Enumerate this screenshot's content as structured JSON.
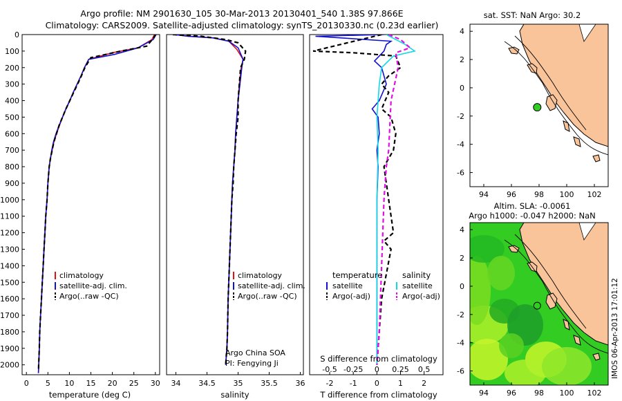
{
  "header": {
    "line1": "Argo profile: NM 2901630_105 30-Mar-2013 20130401_540 1.38S 97.866E",
    "line2": "Climatology: CARS2009. Satellite-adjusted climatology: synTS_20130330.nc (0.23d earlier)"
  },
  "credit": "IMOS 06-Apr-2013 17:01:12",
  "colors": {
    "climatology": "#e01010",
    "satellite": "#1010d0",
    "argo": "#000000",
    "sal_satellite": "#10d8e8",
    "sal_argo": "#e010e0",
    "land": "#f9c49a",
    "map_green": "#33cc22"
  },
  "chart_data": [
    {
      "type": "line",
      "id": "temperature",
      "xlabel": "temperature (deg C)",
      "ylabel": "",
      "xlim": [
        -1,
        31
      ],
      "ylim": [
        2060,
        0
      ],
      "xticks": [
        0,
        5,
        10,
        15,
        20,
        25,
        30
      ],
      "yticks": [
        0,
        100,
        200,
        300,
        400,
        500,
        600,
        700,
        800,
        900,
        1000,
        1100,
        1200,
        1300,
        1400,
        1500,
        1600,
        1700,
        1800,
        1900,
        2000
      ],
      "legend": [
        "climatology",
        "satellite-adj. clim.",
        "Argo(..raw -QC)"
      ],
      "legend_position": "bottom-right",
      "series": [
        {
          "name": "climatology",
          "style": "solid",
          "color": "#e01010",
          "x": [
            29.8,
            29.2,
            26,
            20,
            14.5,
            13.5,
            12.7,
            11.8,
            10.9,
            10.1,
            9.2,
            8.4,
            7.7,
            7.0,
            6.4,
            6.0,
            5.6,
            5.3,
            5.0,
            4.8,
            4.5,
            4.3,
            4.1,
            3.9,
            3.7,
            3.5,
            3.3,
            3.1,
            3.0,
            2.8
          ],
          "y": [
            0,
            30,
            80,
            110,
            150,
            200,
            250,
            300,
            350,
            400,
            450,
            500,
            550,
            600,
            650,
            700,
            750,
            800,
            900,
            1000,
            1100,
            1200,
            1300,
            1400,
            1500,
            1600,
            1700,
            1800,
            1900,
            2050
          ]
        },
        {
          "name": "satellite-adj. clim.",
          "style": "solid",
          "color": "#1010d0",
          "x": [
            30.2,
            29.5,
            26,
            20.5,
            14.5,
            13.5,
            12.7,
            11.8,
            10.9,
            10.1,
            9.2,
            8.4,
            7.6,
            6.9,
            6.3,
            5.9,
            5.6,
            5.3,
            5.0,
            4.8,
            4.5,
            4.3,
            4.1,
            3.9,
            3.7,
            3.5,
            3.3,
            3.1,
            3.0,
            2.8
          ],
          "y": [
            0,
            30,
            80,
            120,
            150,
            200,
            250,
            300,
            350,
            400,
            450,
            500,
            550,
            600,
            650,
            700,
            750,
            800,
            900,
            1000,
            1100,
            1200,
            1300,
            1400,
            1500,
            1600,
            1700,
            1800,
            1900,
            2050
          ]
        },
        {
          "name": "Argo(..raw -QC)",
          "style": "dashed",
          "color": "#000000",
          "x": [
            30.0,
            29.6,
            28,
            22,
            15,
            13.6,
            12.8,
            11.9,
            11.0,
            10.1,
            9.2,
            8.4,
            7.6,
            7.0,
            6.4,
            6.0,
            5.6,
            5.3,
            5.0,
            4.8,
            4.5,
            4.3,
            4.1,
            3.9,
            3.7,
            3.5,
            3.3,
            3.1,
            3.0,
            2.8
          ],
          "y": [
            0,
            20,
            70,
            100,
            140,
            200,
            250,
            300,
            350,
            400,
            450,
            500,
            550,
            600,
            650,
            700,
            750,
            800,
            900,
            1000,
            1100,
            1200,
            1300,
            1400,
            1500,
            1600,
            1700,
            1800,
            1900,
            2040
          ]
        }
      ]
    },
    {
      "type": "line",
      "id": "salinity",
      "xlabel": "salinity",
      "ylabel": "",
      "xlim": [
        33.85,
        36.05
      ],
      "ylim": [
        2060,
        0
      ],
      "xticks": [
        34,
        34.5,
        35,
        35.5,
        36
      ],
      "legend": [
        "climatology",
        "satellite-adj. clim.",
        "Argo(..raw -QC)"
      ],
      "legend_position": "bottom-right",
      "annotation": [
        "Argo China SOA",
        "PI: Fengying Ji"
      ],
      "series": [
        {
          "name": "climatology",
          "style": "solid",
          "color": "#e01010",
          "x": [
            33.97,
            34.2,
            34.6,
            34.85,
            34.98,
            35.08,
            35.05,
            35.02,
            35.0,
            34.98,
            34.96,
            34.95,
            34.93,
            34.91,
            34.9,
            34.88,
            34.86,
            34.85,
            34.84,
            34.83,
            34.82,
            34.8
          ],
          "y": [
            0,
            10,
            20,
            40,
            90,
            150,
            200,
            300,
            400,
            500,
            600,
            700,
            800,
            900,
            1000,
            1200,
            1400,
            1500,
            1600,
            1800,
            1900,
            2000
          ]
        },
        {
          "name": "satellite-adj. clim.",
          "style": "solid",
          "color": "#1010d0",
          "x": [
            33.97,
            34.2,
            34.6,
            34.85,
            35.0,
            35.08,
            35.06,
            35.03,
            35.0,
            34.98,
            34.96,
            34.95,
            34.93,
            34.91,
            34.9,
            34.88,
            34.86,
            34.85,
            34.84,
            34.83,
            34.82,
            34.8
          ],
          "y": [
            0,
            10,
            20,
            40,
            80,
            150,
            200,
            300,
            400,
            500,
            600,
            700,
            800,
            900,
            1000,
            1200,
            1400,
            1500,
            1600,
            1800,
            1900,
            2000
          ]
        },
        {
          "name": "Argo(..raw -QC)",
          "style": "dashed",
          "color": "#000000",
          "x": [
            33.95,
            34.4,
            34.8,
            35.0,
            35.12,
            35.1,
            35.04,
            35.02,
            35.0,
            35.0,
            34.97,
            34.95,
            34.93,
            34.92,
            34.9,
            34.88,
            34.86,
            34.85,
            34.84,
            34.83,
            34.82,
            34.8
          ],
          "y": [
            0,
            10,
            30,
            50,
            100,
            150,
            200,
            300,
            400,
            500,
            600,
            700,
            800,
            900,
            1000,
            1200,
            1400,
            1500,
            1600,
            1800,
            1900,
            2000
          ]
        }
      ]
    },
    {
      "type": "line",
      "id": "difference",
      "xlabel": "T difference from climatology",
      "xlabel_top": "S difference from climatology",
      "xlim": [
        -2.85,
        2.8
      ],
      "ylim": [
        2060,
        0
      ],
      "xticks_T": [
        -2,
        -1,
        0,
        1,
        2
      ],
      "xticks_S": [
        "-0.5",
        "-0.25",
        "0",
        "0.25",
        "0.5"
      ],
      "xticks_S_pos": [
        -2,
        -1,
        0,
        1,
        2
      ],
      "legend_temperature_title": "temperature",
      "legend_temperature": [
        "satellite",
        "Argo(-adj)"
      ],
      "legend_salinity_title": "salinity",
      "legend_salinity": [
        "satellite",
        "Argo(-adj)"
      ],
      "series": [
        {
          "name": "satellite",
          "group": "temperature",
          "style": "solid",
          "color": "#1010d0",
          "x": [
            0.3,
            -2.6,
            0.6,
            0.4,
            0.3,
            -0.1,
            0.2,
            0.4,
            0.1,
            -0.2,
            0.05,
            0.1,
            0.0,
            0.05,
            0.0,
            0.0,
            0.0,
            0.0
          ],
          "y": [
            0,
            10,
            40,
            60,
            100,
            160,
            200,
            300,
            400,
            450,
            500,
            600,
            700,
            800,
            1000,
            1400,
            1800,
            2000
          ]
        },
        {
          "name": "Argo(-adj)",
          "group": "temperature",
          "style": "dashed",
          "color": "#000000",
          "x": [
            0.2,
            -2.7,
            -1.0,
            0.8,
            1.0,
            0.5,
            0.2,
            0.5,
            0.2,
            0.6,
            0.8,
            0.7,
            0.3,
            0.5,
            0.7,
            0.3,
            0.6,
            0.4,
            0.2,
            0.0
          ],
          "y": [
            0,
            100,
            110,
            130,
            200,
            250,
            300,
            350,
            450,
            500,
            600,
            700,
            800,
            1000,
            1200,
            1250,
            1300,
            1450,
            1600,
            2000
          ]
        },
        {
          "name": "satellite",
          "group": "salinity",
          "style": "solid",
          "color": "#10d8e8",
          "x": [
            0.4,
            0.8,
            1.2,
            1.6,
            0.7,
            0.2,
            0.1,
            0.0,
            0.05,
            0.0,
            0.0,
            0.0,
            0.0
          ],
          "y": [
            0,
            30,
            60,
            100,
            130,
            200,
            300,
            500,
            700,
            1000,
            1400,
            1800,
            2000
          ]
        },
        {
          "name": "Argo(-adj)",
          "group": "salinity",
          "style": "dashed",
          "color": "#e010e0",
          "x": [
            0.5,
            1.0,
            1.4,
            0.8,
            0.9,
            0.6,
            0.5,
            0.4,
            0.3,
            0.2,
            0.1,
            0.0
          ],
          "y": [
            0,
            30,
            80,
            110,
            200,
            400,
            700,
            800,
            1000,
            1400,
            1800,
            2000
          ]
        }
      ]
    }
  ],
  "map_top": {
    "title": "sat. SST: NaN Argo: 30.2",
    "xticks": [
      "94",
      "96",
      "98",
      "100",
      "102"
    ],
    "yticks": [
      "4",
      "2",
      "0",
      "-2",
      "-4",
      "-6"
    ],
    "lon_range": [
      93,
      103
    ],
    "lat_range": [
      -7,
      4.5
    ],
    "argo_marker": {
      "lon": 97.866,
      "lat": -1.38
    }
  },
  "map_bottom": {
    "title_line1": "Altim. SLA: -0.0061",
    "title_line2": "Argo h1000: -0.047 h2000: NaN",
    "xticks": [
      "94",
      "96",
      "98",
      "100",
      "102"
    ],
    "yticks": [
      "4",
      "2",
      "0",
      "-2",
      "-4",
      "-6"
    ],
    "lon_range": [
      93,
      103
    ],
    "lat_range": [
      -7,
      4.5
    ],
    "argo_marker": {
      "lon": 97.866,
      "lat": -1.38
    }
  }
}
